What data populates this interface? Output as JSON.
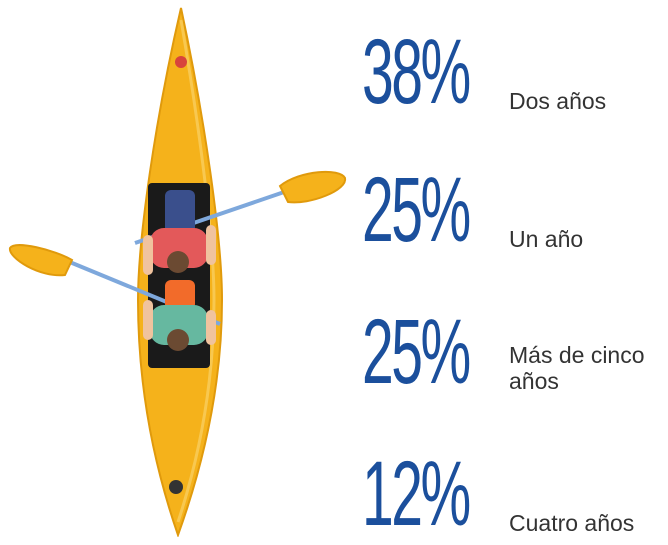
{
  "items": [
    {
      "value": "38%",
      "label": "Dos años"
    },
    {
      "value": "25%",
      "label": "Un año"
    },
    {
      "value": "25%",
      "label": "Más de cinco años"
    },
    {
      "value": "12%",
      "label": "Cuatro años"
    }
  ]
}
